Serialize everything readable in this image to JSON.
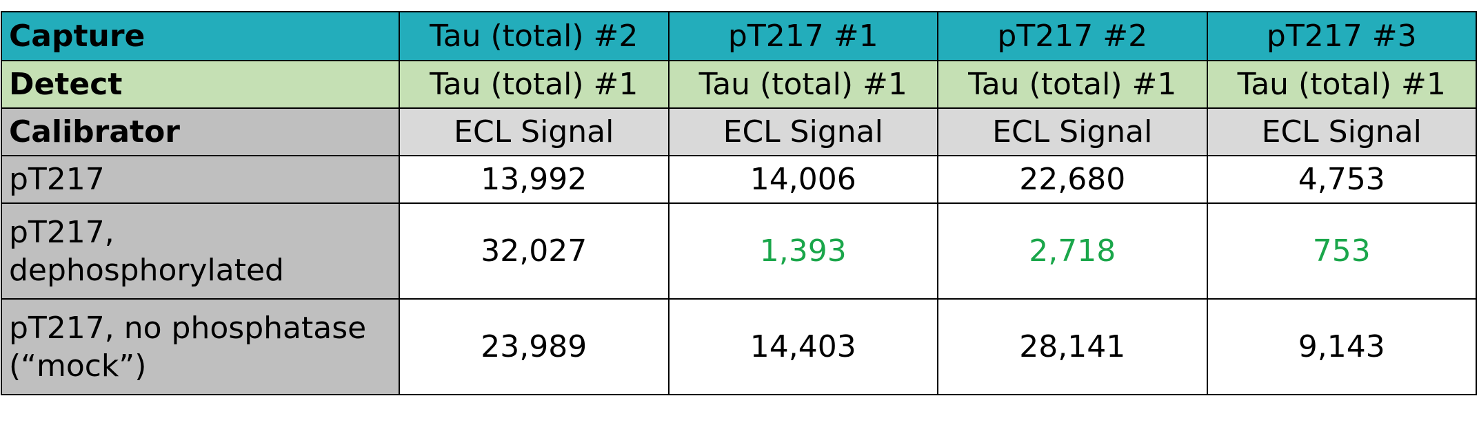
{
  "header_rows": [
    {
      "label": "Capture",
      "cells": [
        "Tau (total) #2",
        "pT217 #1",
        "pT217 #2",
        "pT217 #3"
      ]
    },
    {
      "label": "Detect",
      "cells": [
        "Tau (total) #1",
        "Tau (total) #1",
        "Tau (total) #1",
        "Tau (total) #1"
      ]
    },
    {
      "label": "Calibrator",
      "cells": [
        "ECL Signal",
        "ECL Signal",
        "ECL Signal",
        "ECL Signal"
      ]
    }
  ],
  "rows": [
    {
      "label": [
        "pT217"
      ],
      "cells": [
        "13,992",
        "14,006",
        "22,680",
        "4,753"
      ],
      "highlighted": [
        false,
        false,
        false,
        false
      ]
    },
    {
      "label": [
        "pT217,",
        "dephosphorylated"
      ],
      "cells": [
        "32,027",
        "1,393",
        "2,718",
        "753"
      ],
      "highlighted": [
        false,
        true,
        true,
        true
      ]
    },
    {
      "label": [
        "pT217, no phosphatase",
        "(“mock”)"
      ],
      "cells": [
        "23,989",
        "14,403",
        "28,141",
        "9,143"
      ],
      "highlighted": [
        false,
        false,
        false,
        false
      ]
    }
  ],
  "highlight_color": "#1aa64a"
}
